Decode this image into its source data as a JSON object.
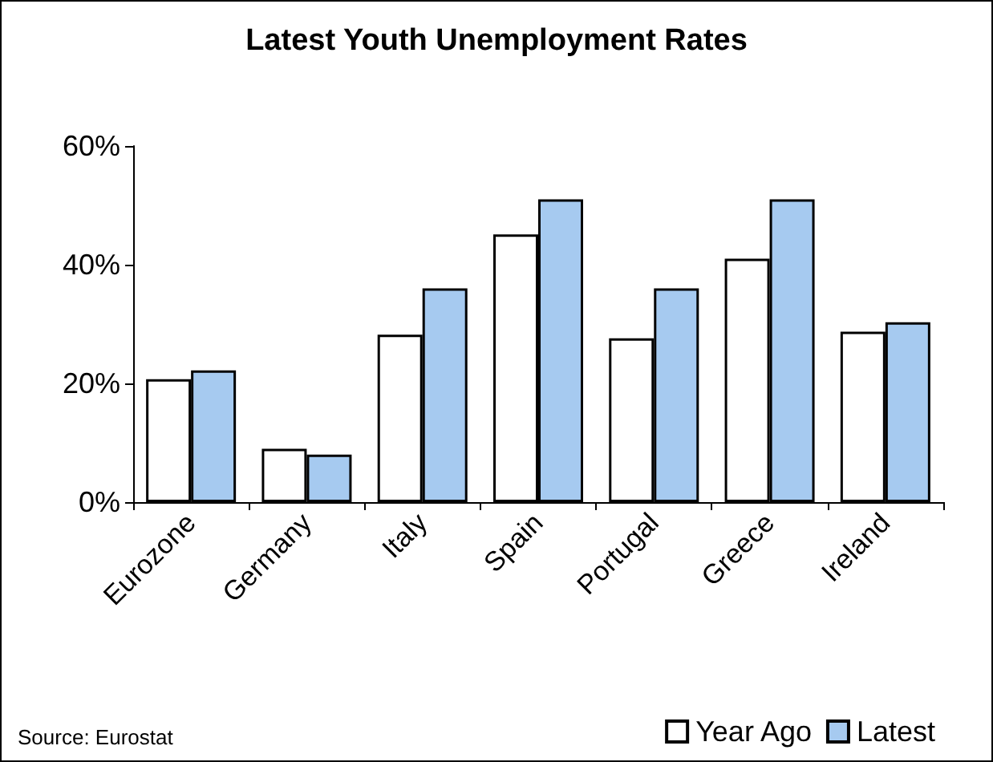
{
  "chart_data": {
    "type": "bar",
    "title": "Latest Youth Unemployment Rates",
    "categories": [
      "Eurozone",
      "Germany",
      "Italy",
      "Spain",
      "Portugal",
      "Greece",
      "Ireland"
    ],
    "series": [
      {
        "name": "Year Ago",
        "color": "#ffffff",
        "values": [
          20.7,
          9.0,
          28.2,
          45.1,
          27.6,
          41.0,
          28.7
        ]
      },
      {
        "name": "Latest",
        "color": "#a6caf0",
        "values": [
          22.2,
          8.0,
          36.0,
          51.0,
          36.0,
          51.0,
          30.3
        ]
      }
    ],
    "ylim": [
      0,
      60
    ],
    "yticks": [
      {
        "value": 0,
        "label": "0%"
      },
      {
        "value": 20,
        "label": "20%"
      },
      {
        "value": 40,
        "label": "40%"
      },
      {
        "value": 60,
        "label": "60%"
      }
    ],
    "grid": false,
    "legend": "bottom right",
    "annotations": [
      "Source: Eurostat"
    ]
  }
}
